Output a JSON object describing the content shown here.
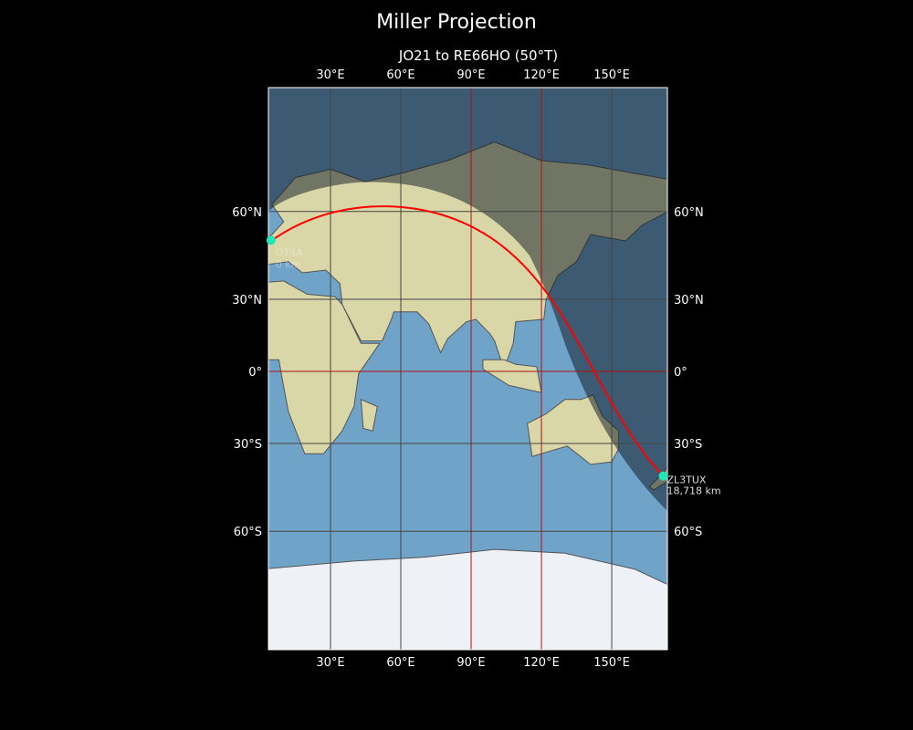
{
  "title": "Miller Projection",
  "subtitle": "JO21 to RE66HO (50°T)",
  "lon_ticks": [
    "30°E",
    "60°E",
    "90°E",
    "120°E",
    "150°E"
  ],
  "lat_ticks": [
    "60°N",
    "30°N",
    "0°",
    "30°S",
    "60°S"
  ],
  "start": {
    "call": "OT4A",
    "distance": "0 km",
    "lat": 51.2,
    "lon": 5.0
  },
  "end": {
    "call": "ZL3TUX",
    "distance": "18,718 km",
    "lat": -42.2,
    "lon": 172.0
  },
  "colors": {
    "path": "#ff0000",
    "marker": "#1de9b6",
    "ocean": "#6fa3c8",
    "land": "#d9d6a8",
    "grid_major": "#b01010",
    "grid": "#444444"
  }
}
